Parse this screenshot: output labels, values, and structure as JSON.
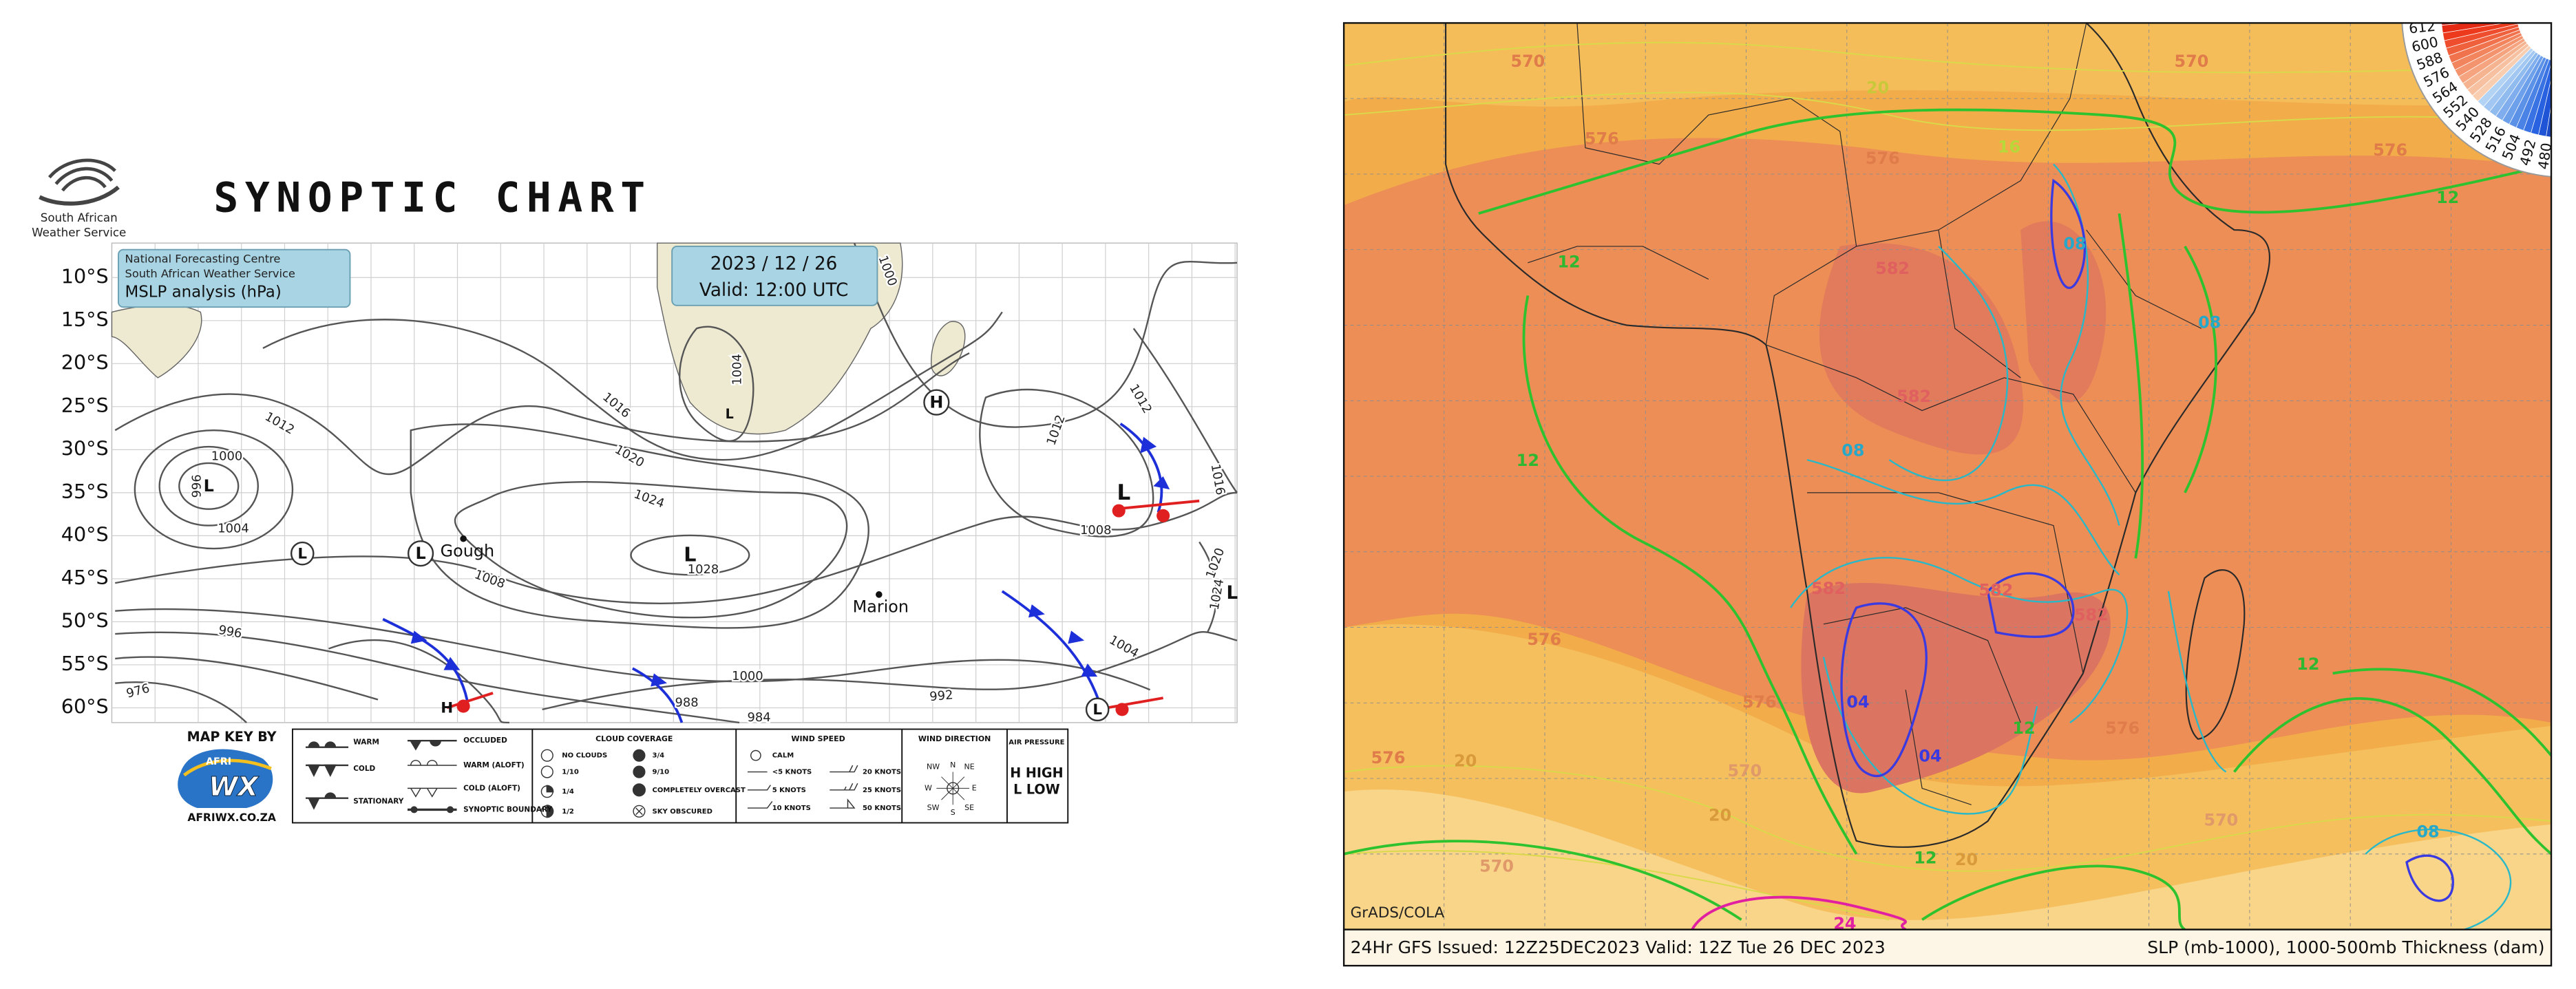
{
  "logo": {
    "line1": "South African",
    "line2": "Weather Service"
  },
  "synoptic": {
    "title": "SYNOPTIC CHART",
    "latitudes": [
      "10°S",
      "15°S",
      "20°S",
      "25°S",
      "30°S",
      "35°S",
      "40°S",
      "45°S",
      "50°S",
      "55°S",
      "60°S"
    ],
    "info": [
      "National Forecasting Centre",
      "South African Weather Service",
      "MSLP analysis (hPa)"
    ],
    "date": "2023 / 12 / 26",
    "valid": "Valid: 12:00 UTC",
    "isobar_labels": [
      "1000",
      "996",
      "1004",
      "1012",
      "1016",
      "1020",
      "1024",
      "1028",
      "1008",
      "1004",
      "1012",
      "1016",
      "1008",
      "1020",
      "1024",
      "996",
      "976",
      "988",
      "984",
      "1000",
      "992",
      "1004",
      "1012",
      "1000"
    ],
    "centers": [
      "L",
      "L",
      "L",
      "L",
      "H",
      "L",
      "L",
      "H",
      "L",
      "L"
    ],
    "places": [
      "Gough",
      "Marion"
    ]
  },
  "key": {
    "by": "MAP KEY BY",
    "logo_small": "AFRI",
    "logo_big": "WX",
    "site": "AFRIWX.CO.ZA",
    "fronts": [
      "WARM",
      "COLD",
      "STATIONARY",
      "OCCLUDED",
      "WARM (ALOFT)",
      "COLD (ALOFT)",
      "SYNOPTIC BOUNDARY"
    ],
    "cloud_title": "CLOUD COVERAGE",
    "cloud": [
      "NO CLOUDS",
      "1/10",
      "1/4",
      "1/2",
      "3/4",
      "9/10",
      "COMPLETELY OVERCAST",
      "SKY OBSCURED"
    ],
    "wind_title": "WIND SPEED",
    "wind": [
      "CALM",
      "<5 KNOTS",
      "5 KNOTS",
      "10 KNOTS",
      "20 KNOTS",
      "25 KNOTS",
      "50 KNOTS"
    ],
    "dir_title": "WIND DIRECTION",
    "dirs": [
      "N",
      "NE",
      "E",
      "SE",
      "S",
      "SW",
      "W",
      "NW"
    ],
    "air_title": "AIR PRESSURE",
    "air": [
      "H HIGH",
      "L LOW"
    ]
  },
  "gfs": {
    "credit": "GrADS/COLA",
    "footer_left": "24Hr GFS Issued: 12Z25DEC2023 Valid: 12Z Tue 26 DEC 2023",
    "footer_right": "SLP (mb-1000), 1000-500mb Thickness (dam)",
    "colorbar_labels": [
      "612",
      "600",
      "588",
      "576",
      "564",
      "552",
      "540",
      "528",
      "516",
      "504",
      "492",
      "480"
    ],
    "contour_labels": [
      "570",
      "576",
      "570",
      "576",
      "576",
      "20",
      "16",
      "12",
      "12",
      "12",
      "582",
      "582",
      "08",
      "08",
      "08",
      "582",
      "582",
      "582",
      "04",
      "04",
      "576",
      "576",
      "576",
      "576",
      "12",
      "12",
      "20",
      "20",
      "570",
      "570",
      "570",
      "08",
      "12",
      "20",
      "24"
    ]
  }
}
